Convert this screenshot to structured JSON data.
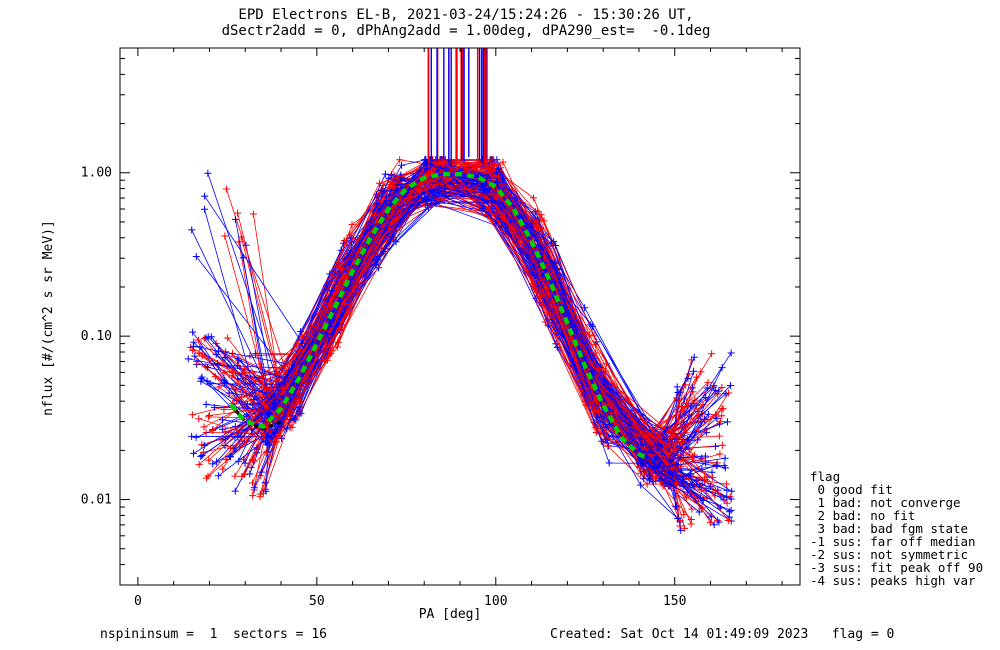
{
  "title": {
    "line1": "EPD Electrons EL-B, 2021-03-24/15:24:26 - 15:30:26 UT,",
    "line2": "dSectr2add = 0, dPhAng2add = 1.00deg, dPA290_est=  -0.1deg"
  },
  "chart_data": {
    "type": "scatter",
    "xlabel": "PA [deg]",
    "ylabel": "nflux [#/(cm^2 s sr MeV)]",
    "xlim": [
      -5,
      185
    ],
    "ylim": [
      0.003,
      5.8
    ],
    "ylog": true,
    "xticks": [
      0,
      50,
      100,
      150
    ],
    "yticks": [
      0.01,
      0.1,
      1.0
    ],
    "ytick_labels": [
      "0.01",
      "0.10",
      "1.00"
    ],
    "grid": false,
    "series_colors": {
      "red": "#ff0000",
      "blue": "#0000ff",
      "fit": "#00d000",
      "fit_alt": "#000000"
    },
    "fit_curve": {
      "x": [
        26,
        30,
        35,
        40,
        45,
        50,
        55,
        60,
        65,
        70,
        75,
        80,
        85,
        90,
        95,
        100,
        105,
        110,
        115,
        120,
        125,
        130,
        135,
        140,
        142
      ],
      "y": [
        0.038,
        0.03,
        0.028,
        0.036,
        0.055,
        0.09,
        0.15,
        0.25,
        0.4,
        0.6,
        0.8,
        0.93,
        0.98,
        0.98,
        0.94,
        0.82,
        0.6,
        0.38,
        0.22,
        0.12,
        0.065,
        0.038,
        0.024,
        0.019,
        0.018
      ]
    },
    "fit_curve_alt": {
      "x": [
        26,
        30,
        35,
        40
      ],
      "y": [
        0.038,
        0.03,
        0.027,
        0.03
      ]
    },
    "legend": {
      "title": "flag",
      "items": [
        " 0 good fit",
        " 1 bad: not converge",
        " 2 bad: no fit",
        " 3 bad: bad fgm state",
        "-1 sus: far off median",
        "-2 sus: not symmetric",
        "-3 sus: fit peak off 90",
        "-4 sus: peaks high var"
      ]
    }
  },
  "footer": {
    "left": "nspininsum =  1  sectors = 16",
    "right": "Created: Sat Oct 14 01:49:09 2023   flag = 0"
  }
}
